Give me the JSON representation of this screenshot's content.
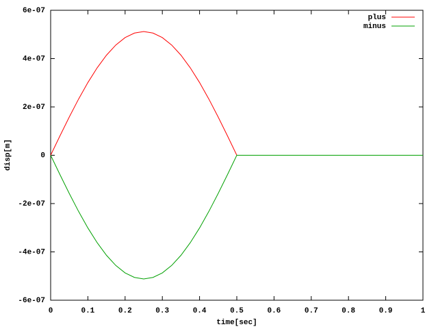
{
  "chart_data": {
    "type": "line",
    "x_label": "time[sec]",
    "y_label": "disp[m]",
    "x": [
      0,
      0.025,
      0.05,
      0.075,
      0.1,
      0.125,
      0.15,
      0.175,
      0.2,
      0.225,
      0.25,
      0.275,
      0.3,
      0.325,
      0.35,
      0.375,
      0.4,
      0.425,
      0.45,
      0.475,
      0.5,
      0.75,
      1
    ],
    "series": [
      {
        "name": "plus",
        "color": "#ff0000",
        "values": [
          0,
          8.01e-08,
          1.582e-07,
          2.324e-07,
          3.009e-07,
          3.62e-07,
          4.142e-07,
          4.562e-07,
          4.87e-07,
          5.057e-07,
          5.12e-07,
          5.057e-07,
          4.87e-07,
          4.562e-07,
          4.142e-07,
          3.62e-07,
          3.009e-07,
          2.324e-07,
          1.582e-07,
          8.01e-08,
          0,
          0,
          0
        ]
      },
      {
        "name": "minus",
        "color": "#00a000",
        "values": [
          0,
          -8.01e-08,
          -1.582e-07,
          -2.324e-07,
          -3.009e-07,
          -3.62e-07,
          -4.142e-07,
          -4.562e-07,
          -4.87e-07,
          -5.057e-07,
          -5.12e-07,
          -5.057e-07,
          -4.87e-07,
          -4.562e-07,
          -4.142e-07,
          -3.62e-07,
          -3.009e-07,
          -2.324e-07,
          -1.582e-07,
          -8.01e-08,
          0,
          0,
          0
        ]
      }
    ],
    "xlim": [
      0,
      1
    ],
    "xticks": [
      0,
      0.1,
      0.2,
      0.3,
      0.4,
      0.5,
      0.6,
      0.7,
      0.8,
      0.9,
      1
    ],
    "ylim": [
      -6e-07,
      6e-07
    ],
    "yticks": [
      {
        "value": -6e-07,
        "label": "-6e-07"
      },
      {
        "value": -4e-07,
        "label": "-4e-07"
      },
      {
        "value": -2e-07,
        "label": "-2e-07"
      },
      0,
      {
        "value": 2e-07,
        "label": "2e-07"
      },
      {
        "value": 4e-07,
        "label": "4e-07"
      },
      {
        "value": 6e-07,
        "label": "6e-07"
      }
    ],
    "legend": "top-right",
    "grid": false
  }
}
